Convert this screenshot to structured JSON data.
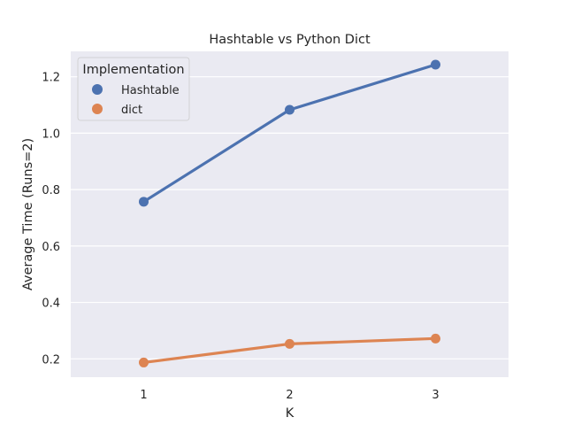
{
  "chart_data": {
    "type": "line",
    "title": "Hashtable vs Python Dict",
    "xlabel": "K",
    "ylabel": "Average Time (Runs=2)",
    "categories": [
      "1",
      "2",
      "3"
    ],
    "ylim": [
      0.135,
      1.29
    ],
    "yticks": [
      0.2,
      0.4,
      0.6,
      0.8,
      1.0,
      1.2
    ],
    "ytick_labels": [
      "0.2",
      "0.4",
      "0.6",
      "0.8",
      "1.0",
      "1.2"
    ],
    "grid": true,
    "legend": {
      "title": "Implementation",
      "placement": "top-left"
    },
    "series": [
      {
        "name": "Hashtable",
        "values": [
          0.757,
          1.083,
          1.243
        ],
        "color": "#4c72b0"
      },
      {
        "name": "dict",
        "values": [
          0.187,
          0.253,
          0.272
        ],
        "color": "#dd8452"
      }
    ]
  }
}
